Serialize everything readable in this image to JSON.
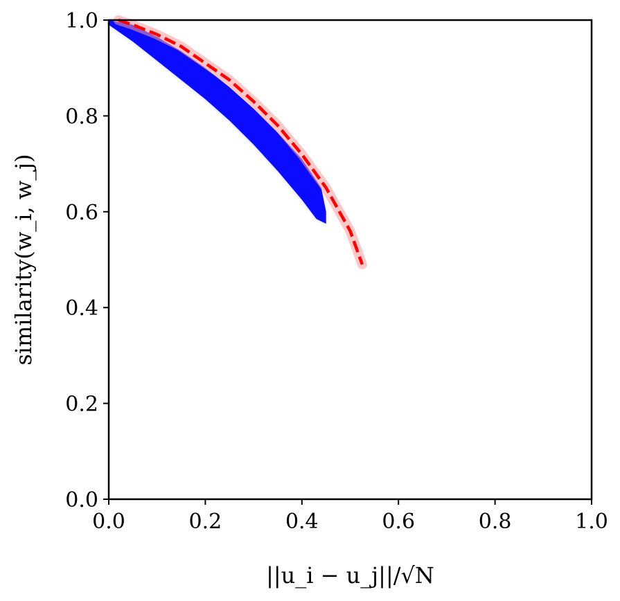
{
  "chart_data": {
    "type": "scatter",
    "title": "",
    "xlabel": "||u_i − u_j||/√N",
    "ylabel": "similarity(w_i, w_j)",
    "xlim": [
      0.0,
      1.0
    ],
    "ylim": [
      0.0,
      1.0
    ],
    "xticks": [
      "0.0",
      "0.2",
      "0.4",
      "0.6",
      "0.8",
      "1.0"
    ],
    "yticks": [
      "0.0",
      "0.2",
      "0.4",
      "0.6",
      "0.8",
      "1.0"
    ],
    "grid": false,
    "legend": "none",
    "series": [
      {
        "kind": "scatter-band",
        "color": "#0000ff",
        "upper_edge": [
          {
            "x": 0.0,
            "y": 1.0
          },
          {
            "x": 0.05,
            "y": 0.99
          },
          {
            "x": 0.1,
            "y": 0.965
          },
          {
            "x": 0.15,
            "y": 0.935
          },
          {
            "x": 0.2,
            "y": 0.9
          },
          {
            "x": 0.25,
            "y": 0.86
          },
          {
            "x": 0.3,
            "y": 0.815
          },
          {
            "x": 0.35,
            "y": 0.765
          },
          {
            "x": 0.4,
            "y": 0.71
          },
          {
            "x": 0.44,
            "y": 0.65
          },
          {
            "x": 0.45,
            "y": 0.6
          }
        ],
        "lower_edge": [
          {
            "x": 0.0,
            "y": 0.99
          },
          {
            "x": 0.05,
            "y": 0.955
          },
          {
            "x": 0.1,
            "y": 0.915
          },
          {
            "x": 0.15,
            "y": 0.875
          },
          {
            "x": 0.2,
            "y": 0.835
          },
          {
            "x": 0.25,
            "y": 0.79
          },
          {
            "x": 0.3,
            "y": 0.74
          },
          {
            "x": 0.35,
            "y": 0.685
          },
          {
            "x": 0.4,
            "y": 0.625
          },
          {
            "x": 0.43,
            "y": 0.585
          },
          {
            "x": 0.45,
            "y": 0.575
          }
        ]
      },
      {
        "kind": "dashed-line",
        "color": "#ff0000",
        "points": [
          {
            "x": 0.02,
            "y": 1.0
          },
          {
            "x": 0.05,
            "y": 0.99
          },
          {
            "x": 0.1,
            "y": 0.97
          },
          {
            "x": 0.15,
            "y": 0.945
          },
          {
            "x": 0.2,
            "y": 0.91
          },
          {
            "x": 0.25,
            "y": 0.875
          },
          {
            "x": 0.3,
            "y": 0.83
          },
          {
            "x": 0.35,
            "y": 0.78
          },
          {
            "x": 0.4,
            "y": 0.72
          },
          {
            "x": 0.45,
            "y": 0.65
          },
          {
            "x": 0.5,
            "y": 0.56
          },
          {
            "x": 0.525,
            "y": 0.49
          }
        ]
      }
    ]
  }
}
